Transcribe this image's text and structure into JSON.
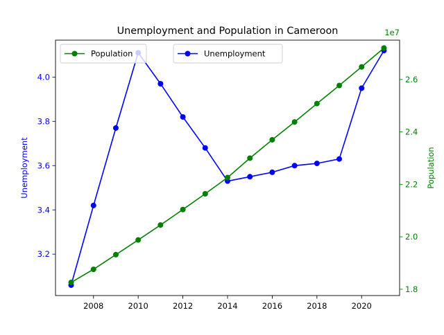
{
  "chart_data": {
    "type": "line",
    "title": "Unemployment and Population in Cameroon",
    "xlabel": "",
    "x": [
      2007,
      2008,
      2009,
      2010,
      2011,
      2012,
      2013,
      2014,
      2015,
      2016,
      2017,
      2018,
      2019,
      2020,
      2021
    ],
    "xlim": [
      2006.3,
      2021.7
    ],
    "x_ticks": [
      2008,
      2010,
      2012,
      2014,
      2016,
      2018,
      2020
    ],
    "left_axis": {
      "label": "Unemployment",
      "color": "#0000ff",
      "ylim": [
        3.013,
        4.167
      ],
      "ticks": [
        3.2,
        3.4,
        3.6,
        3.8,
        4.0
      ],
      "tick_labels": [
        "3.2",
        "3.4",
        "3.6",
        "3.8",
        "4.0"
      ]
    },
    "right_axis": {
      "label": "Population",
      "color": "#008000",
      "offset_text": "1e7",
      "ylim": [
        1.776,
        2.75
      ],
      "ticks": [
        1.8,
        2.0,
        2.2,
        2.4,
        2.6
      ],
      "tick_labels": [
        "1.8",
        "2.0",
        "2.2",
        "2.4",
        "2.6"
      ]
    },
    "series": [
      {
        "name": "Unemployment",
        "axis": "left",
        "color": "#0000ff",
        "values": [
          3.06,
          3.42,
          3.77,
          4.11,
          3.97,
          3.82,
          3.68,
          3.53,
          3.55,
          3.57,
          3.6,
          3.61,
          3.63,
          3.95,
          4.12
        ]
      },
      {
        "name": "Population",
        "axis": "right",
        "color": "#008000",
        "values": [
          1.826,
          1.876,
          1.932,
          1.988,
          2.045,
          2.104,
          2.164,
          2.226,
          2.3,
          2.37,
          2.438,
          2.508,
          2.577,
          2.648,
          2.72
        ]
      }
    ],
    "legends": [
      {
        "series": "Population",
        "placement": "upper-left"
      },
      {
        "series": "Unemployment",
        "placement": "upper-center"
      }
    ],
    "grid": false
  }
}
